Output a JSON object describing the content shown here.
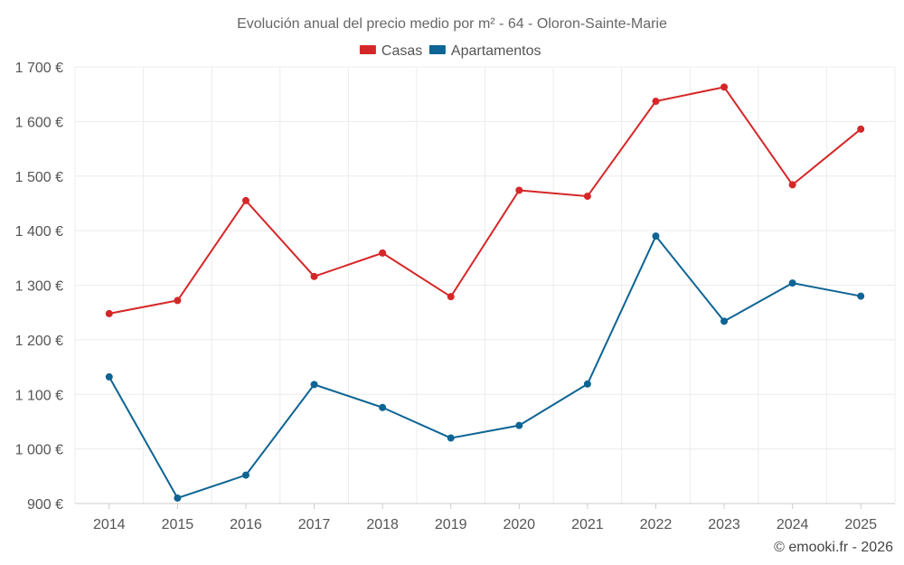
{
  "chart_data": {
    "type": "line",
    "title": "Evolución anual del precio medio por m² - 64 - Oloron-Sainte-Marie",
    "categories": [
      "2014",
      "2015",
      "2016",
      "2017",
      "2018",
      "2019",
      "2020",
      "2021",
      "2022",
      "2023",
      "2024",
      "2025"
    ],
    "y_ticks": [
      {
        "value": 900,
        "label": "900 €"
      },
      {
        "value": 1000,
        "label": "1 000 €"
      },
      {
        "value": 1100,
        "label": "1 100 €"
      },
      {
        "value": 1200,
        "label": "1 200 €"
      },
      {
        "value": 1300,
        "label": "1 300 €"
      },
      {
        "value": 1400,
        "label": "1 400 €"
      },
      {
        "value": 1500,
        "label": "1 500 €"
      },
      {
        "value": 1600,
        "label": "1 600 €"
      },
      {
        "value": 1700,
        "label": "1 700 €"
      }
    ],
    "ylim": [
      900,
      1700
    ],
    "grid": true,
    "legend_position": "top-center",
    "series": [
      {
        "name": "Casas",
        "color": "#d62728",
        "values": [
          1248,
          1272,
          1455,
          1316,
          1359,
          1279,
          1474,
          1463,
          1637,
          1663,
          1484,
          1586
        ]
      },
      {
        "name": "Apartamentos",
        "color": "#0e6494",
        "values": [
          1132,
          910,
          952,
          1118,
          1076,
          1020,
          1043,
          1119,
          1390,
          1234,
          1304,
          1280
        ]
      }
    ],
    "credit": "© emooki.fr - 2026"
  }
}
